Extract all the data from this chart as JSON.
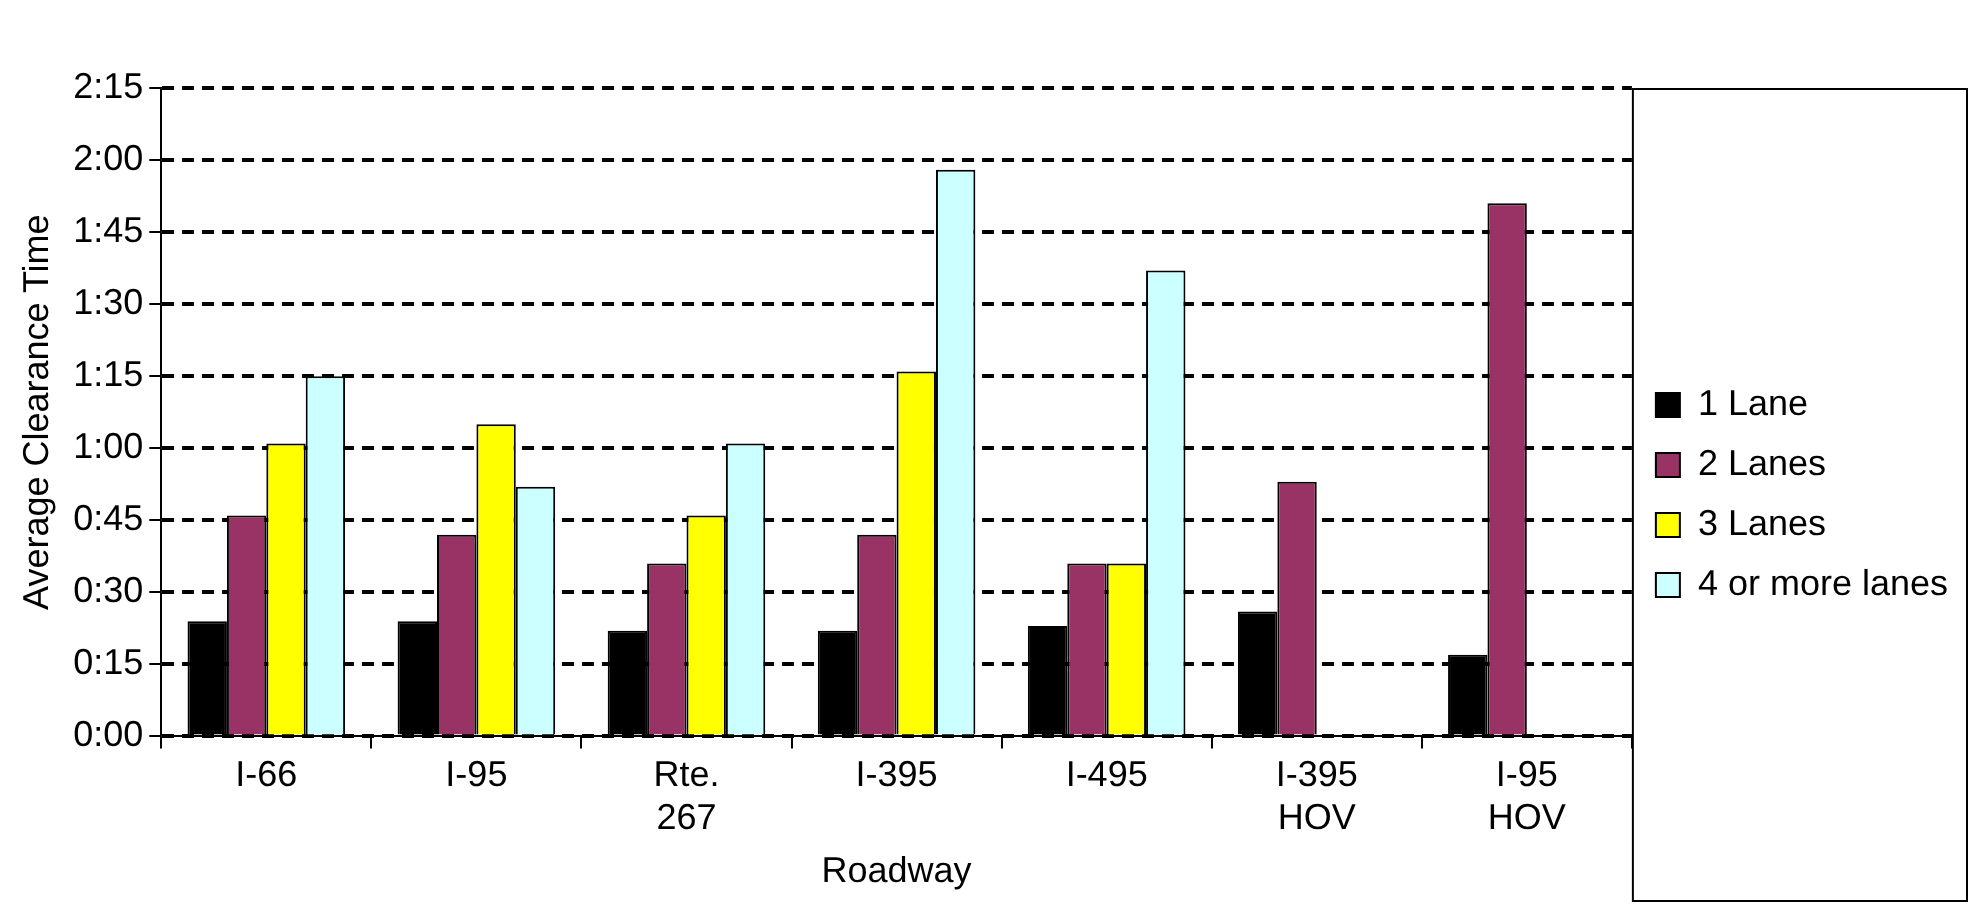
{
  "chart_data": {
    "type": "bar",
    "xlabel": "Roadway",
    "ylabel": "Average Clearance Time",
    "categories": [
      "I-66",
      "I-95",
      "Rte. 267",
      "I-395",
      "I-495",
      "I-395 HOV",
      "I-95 HOV"
    ],
    "series": [
      {
        "name": "1 Lane",
        "color": "#000000",
        "values": [
          24,
          24,
          22,
          22,
          23,
          26,
          17
        ]
      },
      {
        "name": "2 Lanes",
        "color": "#993366",
        "values": [
          46,
          42,
          36,
          42,
          36,
          53,
          111
        ]
      },
      {
        "name": "3 Lanes",
        "color": "#ffff00",
        "values": [
          61,
          65,
          46,
          76,
          36,
          null,
          null
        ]
      },
      {
        "name": "4 or more lanes",
        "color": "#ccffff",
        "values": [
          75,
          52,
          61,
          118,
          97,
          null,
          null
        ]
      }
    ],
    "ylim": [
      0,
      135
    ],
    "yticks": [
      {
        "value": 0,
        "label": "0:00"
      },
      {
        "value": 15,
        "label": "0:15"
      },
      {
        "value": 30,
        "label": "0:30"
      },
      {
        "value": 45,
        "label": "0:45"
      },
      {
        "value": 60,
        "label": "1:00"
      },
      {
        "value": 75,
        "label": "1:15"
      },
      {
        "value": 90,
        "label": "1:30"
      },
      {
        "value": 105,
        "label": "1:45"
      },
      {
        "value": 120,
        "label": "2:00"
      },
      {
        "value": 135,
        "label": "2:15"
      }
    ],
    "grid": "y",
    "legend": "right",
    "line_style": "dashed"
  }
}
